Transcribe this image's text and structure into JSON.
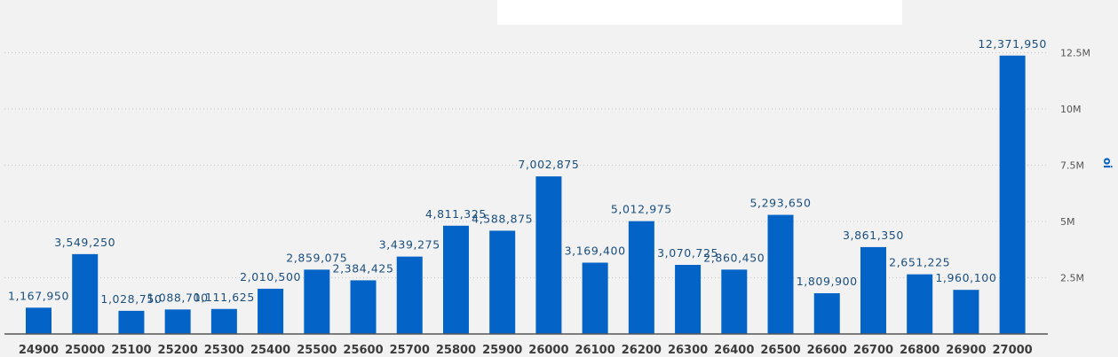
{
  "chart_data": {
    "type": "bar",
    "categories": [
      "24900",
      "25000",
      "25100",
      "25200",
      "25300",
      "25400",
      "25500",
      "25600",
      "25700",
      "25800",
      "25900",
      "26000",
      "26100",
      "26200",
      "26300",
      "26400",
      "26500",
      "26600",
      "26700",
      "26800",
      "26900",
      "27000"
    ],
    "values": [
      1167950,
      3549250,
      1028750,
      1088700,
      1111625,
      2010500,
      2859075,
      2384425,
      3439275,
      4811325,
      4588875,
      7002875,
      3169400,
      5012975,
      3070725,
      2860450,
      5293650,
      1809900,
      3861350,
      2651225,
      1960100,
      12371950
    ],
    "data_labels": [
      "1,167,950",
      "3,549,250",
      "1,028,750",
      "1,088,700",
      "1,111,625",
      "2,010,500",
      "2,859,075",
      "2,384,425",
      "3,439,275",
      "4,811,325",
      "4,588,875",
      "7,002,875",
      "3,169,400",
      "5,012,975",
      "3,070,725",
      "2,860,450",
      "5,293,650",
      "1,809,900",
      "3,861,350",
      "2,651,225",
      "1,960,100",
      "12,371,950"
    ],
    "yticks": [
      2500000,
      5000000,
      7500000,
      10000000,
      12500000
    ],
    "ytick_labels": [
      "2.5M",
      "5M",
      "7.5M",
      "10M",
      "12.5M"
    ],
    "ylim": [
      0,
      13500000
    ],
    "ylabel": "oi",
    "yaxis_side": "right",
    "grid": true,
    "bar_color": "#0363c6"
  }
}
